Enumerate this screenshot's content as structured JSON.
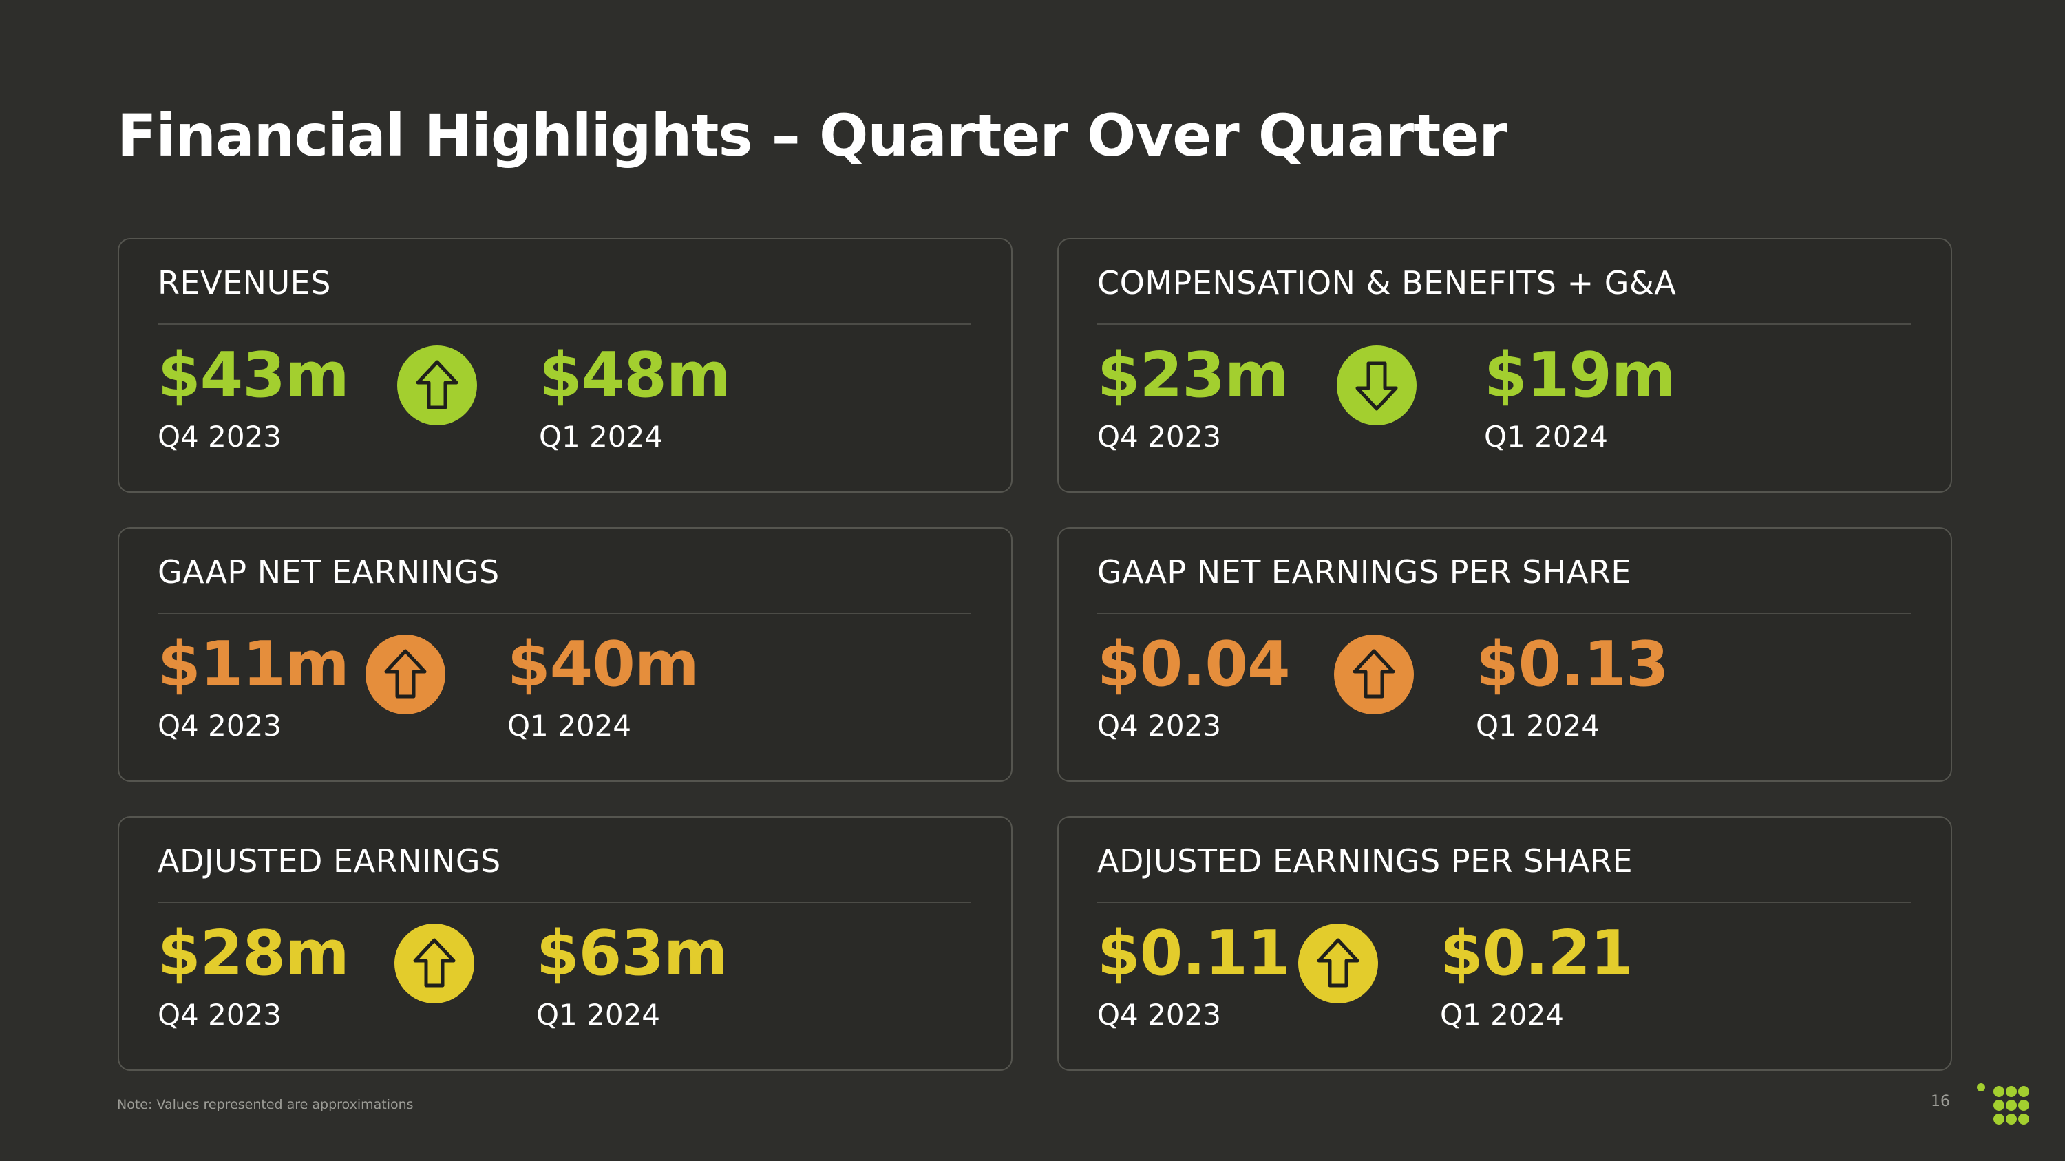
{
  "title": "Financial Highlights – Quarter Over Quarter",
  "colors": {
    "background": "#2e2e2b",
    "green": "#a3cf2f",
    "orange": "#e58e3c",
    "yellow": "#e3cc2c",
    "border": "#55554f"
  },
  "cards": [
    {
      "label": "REVENUES",
      "from_value": "$43m",
      "from_period": "Q4 2023",
      "to_value": "$48m",
      "to_period": "Q1 2024",
      "direction": "up",
      "color": "green",
      "icon": "arrow-up-icon"
    },
    {
      "label": "COMPENSATION & BENEFITS + G&A",
      "from_value": "$23m",
      "from_period": "Q4 2023",
      "to_value": "$19m",
      "to_period": "Q1 2024",
      "direction": "down",
      "color": "green",
      "icon": "arrow-down-icon"
    },
    {
      "label": "GAAP NET EARNINGS",
      "from_value": "$11m",
      "from_period": "Q4 2023",
      "to_value": "$40m",
      "to_period": "Q1 2024",
      "direction": "up",
      "color": "orange",
      "icon": "arrow-up-icon"
    },
    {
      "label": "GAAP NET EARNINGS PER SHARE",
      "from_value": "$0.04",
      "from_period": "Q4 2023",
      "to_value": "$0.13",
      "to_period": "Q1 2024",
      "direction": "up",
      "color": "orange",
      "icon": "arrow-up-icon"
    },
    {
      "label": "ADJUSTED EARNINGS",
      "from_value": "$28m",
      "from_period": "Q4 2023",
      "to_value": "$63m",
      "to_period": "Q1 2024",
      "direction": "up",
      "color": "yellow",
      "icon": "arrow-up-icon"
    },
    {
      "label": "ADJUSTED EARNINGS PER SHARE",
      "from_value": "$0.11",
      "from_period": "Q4 2023",
      "to_value": "$0.21",
      "to_period": "Q1 2024",
      "direction": "up",
      "color": "yellow",
      "icon": "arrow-up-icon"
    }
  ],
  "note": "Note: Values represented are approximations",
  "page_number": "16",
  "logo": "dot-grid-logo-icon"
}
